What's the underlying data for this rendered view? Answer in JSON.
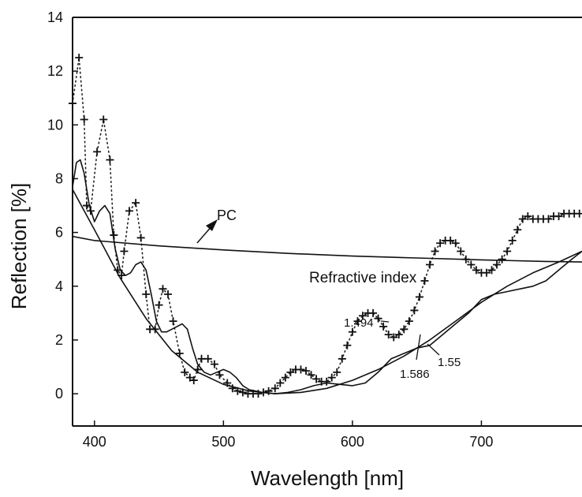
{
  "chart_data": {
    "type": "line",
    "title": "",
    "xlabel": "Wavelength  [nm]",
    "ylabel": "Reflection [%]",
    "xlim": [
      383,
      778
    ],
    "ylim": [
      -1.2,
      14
    ],
    "x_ticks": [
      400,
      500,
      600,
      700
    ],
    "y_ticks": [
      0,
      2,
      4,
      6,
      8,
      10,
      12,
      14
    ],
    "grid": false,
    "legend": "none",
    "series": [
      {
        "style": "plus-markers-dotted",
        "x": [
          383,
          388,
          392,
          394,
          397,
          402,
          407,
          412,
          415,
          418,
          421,
          423,
          427,
          432,
          436,
          440,
          443,
          447,
          450,
          453,
          457,
          461,
          466,
          470,
          474,
          477,
          480,
          483,
          488,
          493,
          497,
          503,
          507,
          511,
          515,
          519,
          523,
          527,
          531,
          535,
          540,
          544,
          548,
          552,
          556,
          560,
          564,
          568,
          572,
          576,
          580,
          584,
          588,
          592,
          596,
          600,
          604,
          608,
          612,
          616,
          620,
          624,
          628,
          632,
          636,
          640,
          644,
          648,
          652,
          656,
          660,
          664,
          668,
          672,
          676,
          680,
          684,
          688,
          692,
          696,
          700,
          704,
          708,
          712,
          716,
          720,
          724,
          728,
          732,
          736,
          740,
          744,
          748,
          752,
          756,
          760,
          764,
          768,
          772,
          776
        ],
        "y": [
          10.8,
          12.5,
          10.2,
          7.0,
          6.8,
          9.0,
          10.2,
          8.7,
          5.9,
          4.6,
          4.4,
          5.3,
          6.8,
          7.1,
          5.8,
          3.7,
          2.4,
          2.4,
          3.3,
          3.9,
          3.7,
          2.7,
          1.5,
          0.8,
          0.6,
          0.5,
          0.9,
          1.3,
          1.3,
          1.1,
          0.7,
          0.4,
          0.2,
          0.1,
          0.05,
          0.0,
          0.0,
          0.0,
          0.05,
          0.1,
          0.2,
          0.4,
          0.6,
          0.8,
          0.9,
          0.9,
          0.85,
          0.7,
          0.55,
          0.45,
          0.45,
          0.6,
          0.8,
          1.3,
          1.8,
          2.3,
          2.7,
          2.9,
          3.0,
          3.0,
          2.8,
          2.5,
          2.2,
          2.1,
          2.2,
          2.4,
          2.7,
          3.1,
          3.6,
          4.2,
          4.8,
          5.3,
          5.6,
          5.7,
          5.7,
          5.6,
          5.3,
          5.0,
          4.8,
          4.6,
          4.5,
          4.5,
          4.6,
          4.8,
          5.0,
          5.3,
          5.7,
          6.1,
          6.5,
          6.6,
          6.5,
          6.5,
          6.5,
          6.5,
          6.6,
          6.6,
          6.7,
          6.7,
          6.7,
          6.7
        ]
      },
      {
        "style": "solid",
        "x": [
          383,
          386,
          389,
          392,
          396,
          400,
          404,
          408,
          412,
          416,
          420,
          424,
          428,
          432,
          436,
          440,
          444,
          448,
          452,
          456,
          460,
          464,
          468,
          472,
          476,
          480,
          485,
          490,
          495,
          500,
          505,
          510,
          515,
          520,
          525,
          530,
          540,
          550,
          560,
          570,
          580,
          590,
          600,
          610,
          620,
          630,
          640,
          650,
          660,
          670,
          680,
          690,
          700,
          710,
          720,
          730,
          740,
          750,
          760,
          770,
          778
        ],
        "y": [
          7.7,
          8.6,
          8.7,
          8.2,
          7.0,
          6.4,
          6.8,
          7.0,
          6.7,
          5.4,
          4.6,
          4.4,
          4.5,
          4.8,
          4.9,
          4.6,
          3.7,
          2.7,
          2.3,
          2.3,
          2.4,
          2.5,
          2.6,
          2.4,
          1.7,
          1.1,
          0.8,
          0.7,
          0.8,
          0.9,
          0.8,
          0.6,
          0.3,
          0.15,
          0.1,
          0.05,
          0.0,
          0.05,
          0.15,
          0.3,
          0.4,
          0.35,
          0.3,
          0.4,
          0.8,
          1.3,
          1.5,
          1.7,
          1.8,
          2.2,
          2.6,
          3.0,
          3.5,
          3.7,
          3.8,
          3.9,
          4.0,
          4.2,
          4.6,
          5.0,
          5.3
        ]
      },
      {
        "style": "solid",
        "x": [
          383,
          400,
          420,
          440,
          460,
          480,
          500,
          520,
          540,
          560,
          580,
          600,
          620,
          640,
          660,
          680,
          700,
          720,
          740,
          760,
          778
        ],
        "y": [
          7.6,
          6.1,
          4.3,
          2.8,
          1.6,
          0.8,
          0.35,
          0.1,
          0.0,
          0.05,
          0.2,
          0.5,
          0.9,
          1.4,
          2.0,
          2.7,
          3.4,
          4.0,
          4.5,
          4.9,
          5.3
        ]
      },
      {
        "name": "PC",
        "style": "solid",
        "x": [
          383,
          400,
          450,
          500,
          550,
          600,
          650,
          700,
          750,
          778
        ],
        "y": [
          5.85,
          5.7,
          5.5,
          5.35,
          5.22,
          5.12,
          5.05,
          4.98,
          4.92,
          4.9
        ]
      }
    ],
    "annotations": [
      {
        "text": "PC",
        "x": 478,
        "y": 6.3
      },
      {
        "text": "Refractive index",
        "x": 610,
        "y": 4.25
      },
      {
        "text": "1.494",
        "x": 609,
        "y": 2.55
      },
      {
        "text": "1.586",
        "x": 630,
        "y": 0.75
      },
      {
        "text": "1.55",
        "x": 675,
        "y": 1.2
      }
    ]
  }
}
